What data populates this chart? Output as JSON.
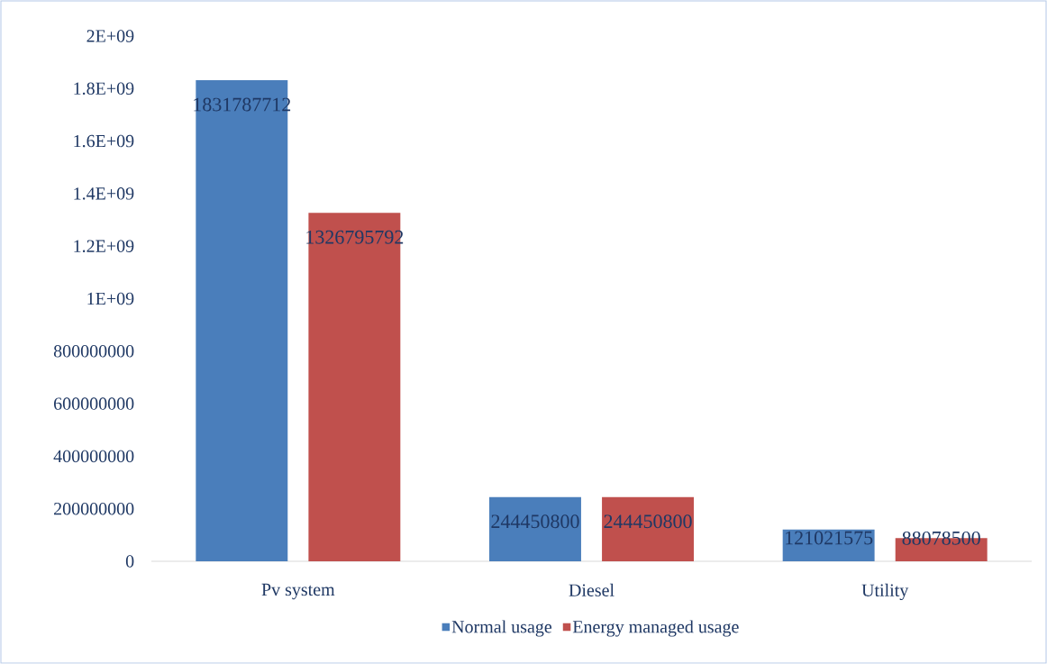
{
  "chart_data": {
    "type": "bar",
    "categories": [
      "Pv system",
      "Diesel",
      "Utility"
    ],
    "series": [
      {
        "name": "Normal usage",
        "color": "#4a7ebb",
        "values": [
          1831787712,
          244450800,
          121021575
        ]
      },
      {
        "name": "Energy managed usage",
        "color": "#c0504d",
        "values": [
          1326795792,
          244450800,
          88078500
        ]
      }
    ],
    "ylim": [
      0,
      2000000000
    ],
    "yticks": [
      0,
      200000000,
      400000000,
      600000000,
      800000000,
      {
        "value": 1000000000,
        "label": "1E+09"
      },
      {
        "value": 1200000000,
        "label": "1.2E+09"
      },
      {
        "value": 1400000000,
        "label": "1.4E+09"
      },
      {
        "value": 1600000000,
        "label": "1.6E+09"
      },
      {
        "value": 1800000000,
        "label": "1.8E+09"
      },
      {
        "value": 2000000000,
        "label": "2E+09"
      }
    ],
    "data_labels": true,
    "legend": "bottom",
    "grid": false
  }
}
